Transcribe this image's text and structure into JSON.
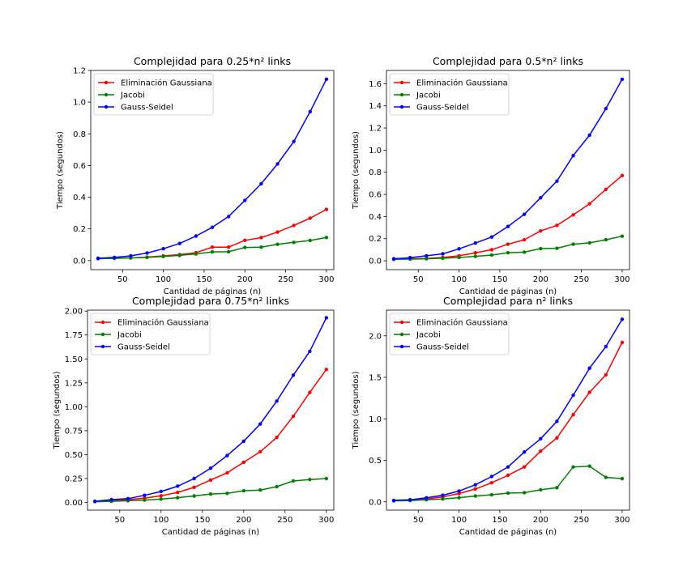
{
  "colors": {
    "gauss_elim": "#ff0000",
    "jacobi": "#008000",
    "gauss_seidel": "#0000ff"
  },
  "chart_data": [
    {
      "type": "line",
      "title": "Complejidad para 0.25*n² links",
      "xlabel": "Cantidad de páginas (n)",
      "ylabel": "Tiempo (segundos)",
      "xlim": [
        11,
        309
      ],
      "ylim": [
        -0.057,
        1.2
      ],
      "xticks": [
        50,
        100,
        150,
        200,
        250,
        300
      ],
      "yticks": [
        0.0,
        0.2,
        0.4,
        0.6,
        0.8,
        1.0,
        1.2
      ],
      "ytick_labels": [
        "0.0",
        "0.2",
        "0.4",
        "0.6",
        "0.8",
        "1.0",
        "1.2"
      ],
      "legend_position": "top-left",
      "x": [
        20,
        40,
        60,
        80,
        100,
        120,
        140,
        160,
        180,
        200,
        220,
        240,
        260,
        280,
        300
      ],
      "series": [
        {
          "name": "Eliminación Gaussiana",
          "color": "#ff0000",
          "values": [
            0.013,
            0.015,
            0.017,
            0.022,
            0.03,
            0.038,
            0.05,
            0.085,
            0.085,
            0.128,
            0.145,
            0.18,
            0.222,
            0.268,
            0.323
          ]
        },
        {
          "name": "Jacobi",
          "color": "#008000",
          "values": [
            0.012,
            0.014,
            0.017,
            0.02,
            0.026,
            0.033,
            0.042,
            0.055,
            0.056,
            0.083,
            0.085,
            0.103,
            0.115,
            0.127,
            0.146
          ]
        },
        {
          "name": "Gauss-Seidel",
          "color": "#0000ff",
          "values": [
            0.015,
            0.02,
            0.03,
            0.048,
            0.075,
            0.108,
            0.155,
            0.21,
            0.278,
            0.38,
            0.485,
            0.61,
            0.752,
            0.94,
            1.145
          ]
        }
      ]
    },
    {
      "type": "line",
      "title": "Complejidad para 0.5*n² links",
      "xlabel": "Cantidad de páginas (n)",
      "ylabel": "Tiempo (segundos)",
      "xlim": [
        11,
        309
      ],
      "ylim": [
        -0.08,
        1.72
      ],
      "xticks": [
        50,
        100,
        150,
        200,
        250,
        300
      ],
      "yticks": [
        0.0,
        0.2,
        0.4,
        0.6,
        0.8,
        1.0,
        1.2,
        1.4,
        1.6
      ],
      "ytick_labels": [
        "0.0",
        "0.2",
        "0.4",
        "0.6",
        "0.8",
        "1.0",
        "1.2",
        "1.4",
        "1.6"
      ],
      "legend_position": "top-left",
      "x": [
        20,
        40,
        60,
        80,
        100,
        120,
        140,
        160,
        180,
        200,
        220,
        240,
        260,
        280,
        300
      ],
      "series": [
        {
          "name": "Eliminación Gaussiana",
          "color": "#ff0000",
          "values": [
            0.015,
            0.018,
            0.022,
            0.03,
            0.045,
            0.072,
            0.1,
            0.15,
            0.19,
            0.27,
            0.32,
            0.415,
            0.515,
            0.645,
            0.77
          ]
        },
        {
          "name": "Jacobi",
          "color": "#008000",
          "values": [
            0.013,
            0.015,
            0.018,
            0.023,
            0.03,
            0.04,
            0.052,
            0.073,
            0.078,
            0.11,
            0.113,
            0.15,
            0.162,
            0.19,
            0.222
          ]
        },
        {
          "name": "Gauss-Seidel",
          "color": "#0000ff",
          "values": [
            0.018,
            0.028,
            0.045,
            0.063,
            0.108,
            0.16,
            0.215,
            0.31,
            0.42,
            0.57,
            0.72,
            0.95,
            1.135,
            1.375,
            1.64
          ]
        }
      ]
    },
    {
      "type": "line",
      "title": "Complejidad para 0.75*n² links",
      "xlabel": "Cantidad de páginas (n)",
      "ylabel": "Tiempo (segundos)",
      "xlim": [
        11,
        309
      ],
      "ylim": [
        -0.08,
        2.01
      ],
      "xticks": [
        50,
        100,
        150,
        200,
        250,
        300
      ],
      "yticks": [
        0.0,
        0.25,
        0.5,
        0.75,
        1.0,
        1.25,
        1.5,
        1.75,
        2.0
      ],
      "ytick_labels": [
        "0.00",
        "0.25",
        "0.50",
        "0.75",
        "1.00",
        "1.25",
        "1.50",
        "1.75",
        "2.00"
      ],
      "legend_position": "top-left",
      "x": [
        20,
        40,
        60,
        80,
        100,
        120,
        140,
        160,
        180,
        200,
        220,
        240,
        260,
        280,
        300
      ],
      "series": [
        {
          "name": "Eliminación Gaussiana",
          "color": "#ff0000",
          "values": [
            0.01,
            0.02,
            0.03,
            0.045,
            0.07,
            0.105,
            0.158,
            0.235,
            0.31,
            0.42,
            0.53,
            0.68,
            0.9,
            1.15,
            1.39
          ]
        },
        {
          "name": "Jacobi",
          "color": "#008000",
          "values": [
            0.008,
            0.012,
            0.018,
            0.025,
            0.035,
            0.05,
            0.068,
            0.088,
            0.095,
            0.122,
            0.13,
            0.165,
            0.225,
            0.24,
            0.25
          ]
        },
        {
          "name": "Gauss-Seidel",
          "color": "#0000ff",
          "values": [
            0.012,
            0.03,
            0.04,
            0.075,
            0.115,
            0.17,
            0.25,
            0.358,
            0.49,
            0.64,
            0.82,
            1.06,
            1.33,
            1.58,
            1.93
          ]
        }
      ]
    },
    {
      "type": "line",
      "title": "Complejidad para n² links",
      "xlabel": "Cantidad de páginas (n)",
      "ylabel": "Tiempo (segundos)",
      "xlim": [
        11,
        309
      ],
      "ylim": [
        -0.1,
        2.31
      ],
      "xticks": [
        50,
        100,
        150,
        200,
        250,
        300
      ],
      "yticks": [
        0.0,
        0.5,
        1.0,
        1.5,
        2.0
      ],
      "ytick_labels": [
        "0.0",
        "0.5",
        "1.0",
        "1.5",
        "2.0"
      ],
      "legend_position": "top-left",
      "x": [
        20,
        40,
        60,
        80,
        100,
        120,
        140,
        160,
        180,
        200,
        220,
        240,
        260,
        280,
        300
      ],
      "series": [
        {
          "name": "Eliminación Gaussiana",
          "color": "#ff0000",
          "values": [
            0.015,
            0.02,
            0.035,
            0.06,
            0.1,
            0.155,
            0.23,
            0.32,
            0.42,
            0.61,
            0.77,
            1.05,
            1.32,
            1.53,
            1.92
          ]
        },
        {
          "name": "Jacobi",
          "color": "#008000",
          "values": [
            0.012,
            0.015,
            0.025,
            0.035,
            0.05,
            0.07,
            0.085,
            0.105,
            0.11,
            0.145,
            0.17,
            0.42,
            0.43,
            0.295,
            0.28
          ]
        },
        {
          "name": "Gauss-Seidel",
          "color": "#0000ff",
          "values": [
            0.018,
            0.025,
            0.048,
            0.08,
            0.13,
            0.205,
            0.305,
            0.42,
            0.6,
            0.76,
            0.97,
            1.285,
            1.61,
            1.87,
            2.2
          ]
        }
      ]
    }
  ]
}
